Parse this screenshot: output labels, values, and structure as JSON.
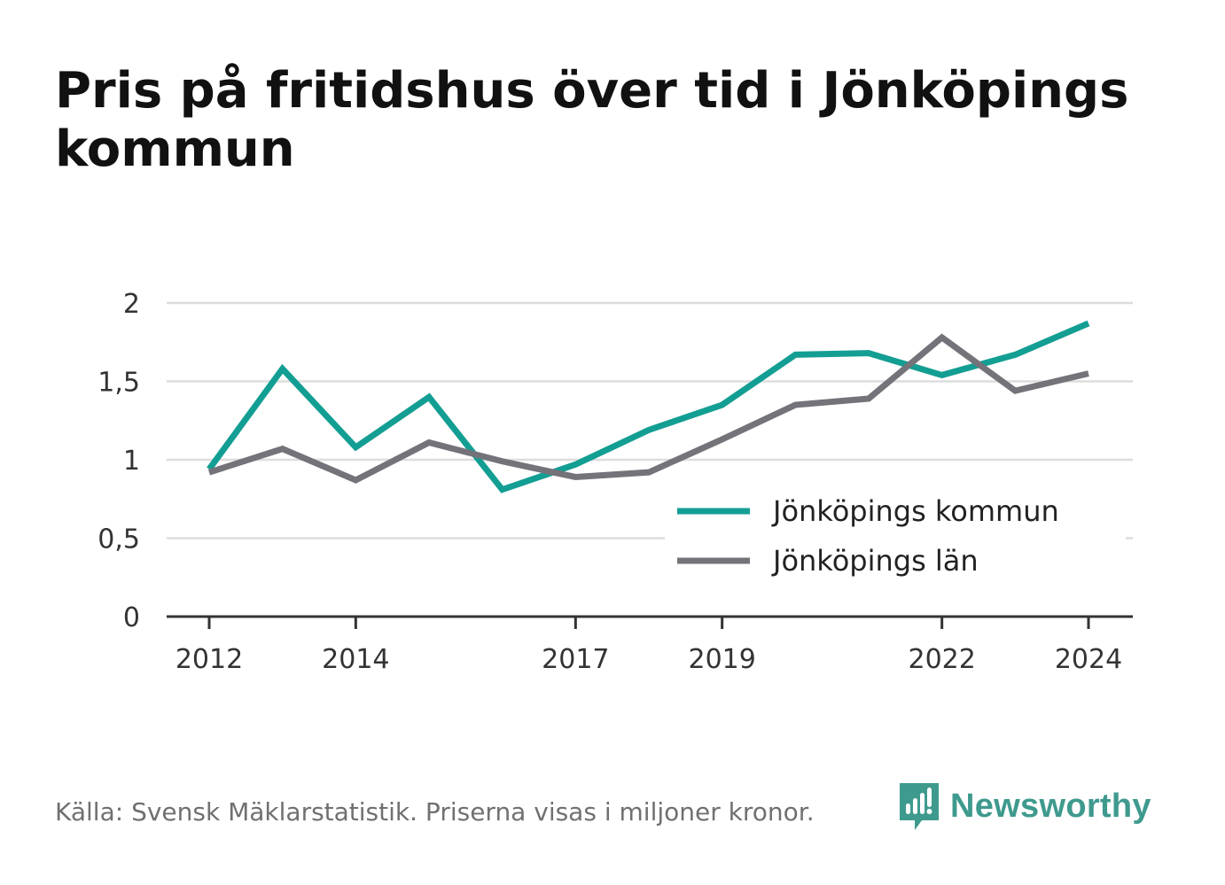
{
  "title": "Pris på fritidshus över tid i Jönköpings kommun",
  "footer": {
    "source": "Källa: Svensk Mäklarstatistik. Priserna visas i miljoner kronor.",
    "brand": "Newsworthy"
  },
  "colors": {
    "kommun": "#139e93",
    "lan": "#747379",
    "grid": "#dddddd",
    "axis": "#333333",
    "brand": "#3f9a8e"
  },
  "chart_data": {
    "type": "line",
    "x": [
      2012,
      2013,
      2014,
      2015,
      2016,
      2017,
      2018,
      2019,
      2020,
      2021,
      2022,
      2023,
      2024
    ],
    "x_tick_labels": [
      "2012",
      "2014",
      "2017",
      "2019",
      "2022",
      "2024"
    ],
    "x_tick_values": [
      2012,
      2014,
      2017,
      2019,
      2022,
      2024
    ],
    "y_tick_labels": [
      "0",
      "0,5",
      "1",
      "1,5",
      "2"
    ],
    "y_tick_values": [
      0,
      0.5,
      1,
      1.5,
      2
    ],
    "ylim": [
      0,
      2
    ],
    "grid": true,
    "legend_position": "bottom-right",
    "series": [
      {
        "name": "Jönköpings kommun",
        "color": "#139e93",
        "values": [
          0.94,
          1.58,
          1.08,
          1.4,
          0.81,
          0.97,
          1.19,
          1.35,
          1.67,
          1.68,
          1.54,
          1.67,
          1.87
        ]
      },
      {
        "name": "Jönköpings län",
        "color": "#747379",
        "values": [
          0.92,
          1.07,
          0.87,
          1.11,
          0.99,
          0.89,
          0.92,
          1.13,
          1.35,
          1.39,
          1.78,
          1.44,
          1.55
        ]
      }
    ]
  }
}
